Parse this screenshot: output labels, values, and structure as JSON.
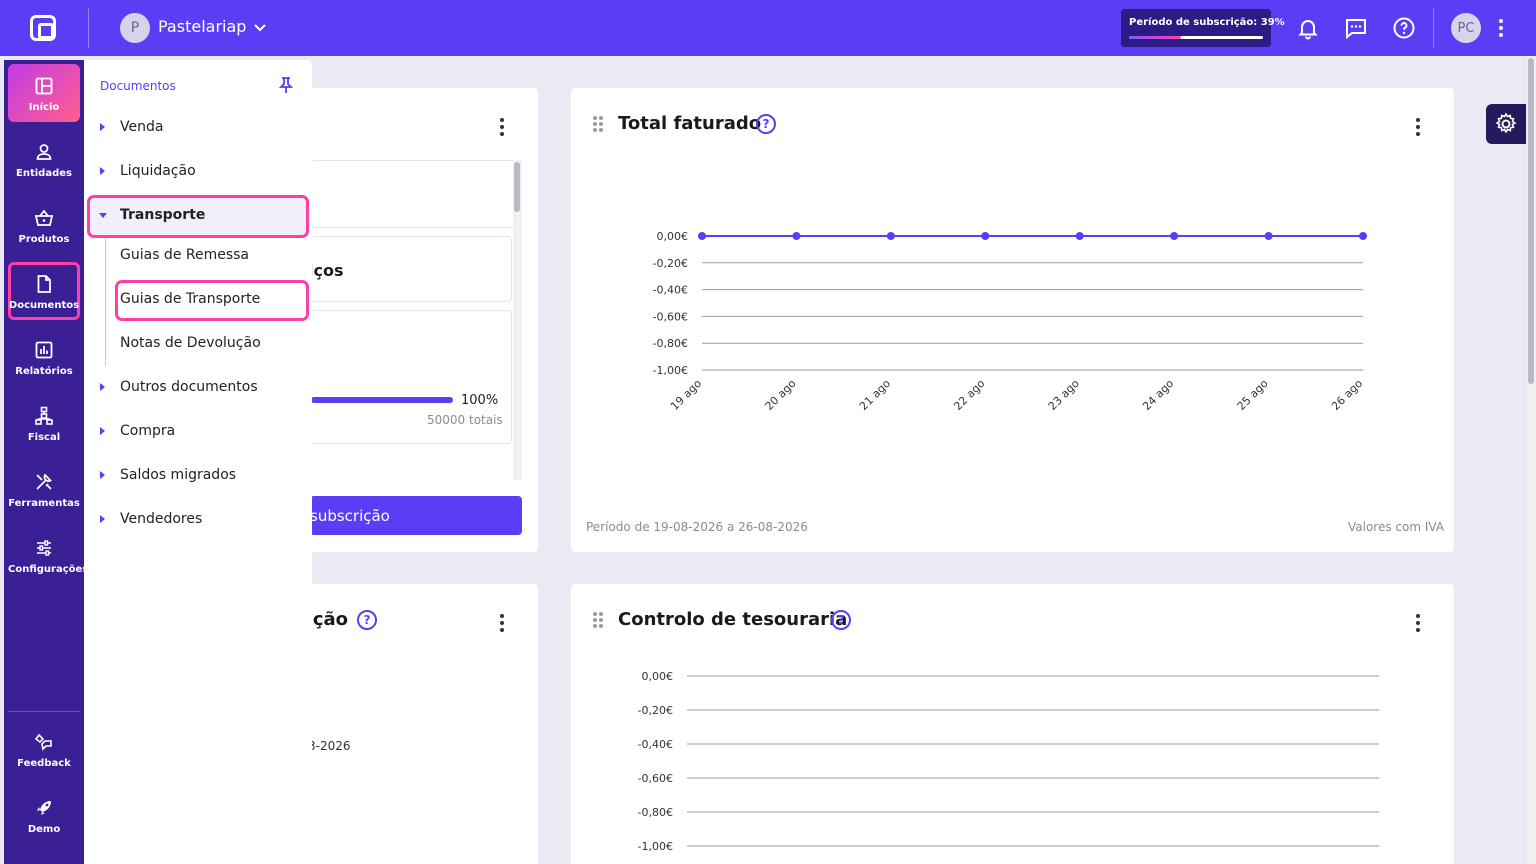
{
  "topbar": {
    "company_initial": "P",
    "company_name": "Pastelariap",
    "subscription_label": "Período de subscrição: 39%",
    "subscription_progress_pct": 39,
    "user_initials": "PC"
  },
  "sidenav": {
    "items": [
      {
        "label": "Início",
        "icon": "dashboard-icon"
      },
      {
        "label": "Entidades",
        "icon": "person-icon"
      },
      {
        "label": "Produtos",
        "icon": "basket-icon"
      },
      {
        "label": "Documentos",
        "icon": "document-icon"
      },
      {
        "label": "Relatórios",
        "icon": "bar-chart-icon"
      },
      {
        "label": "Fiscal",
        "icon": "hierarchy-icon"
      },
      {
        "label": "Ferramentas",
        "icon": "tools-icon"
      },
      {
        "label": "Configurações",
        "icon": "sliders-icon"
      }
    ],
    "bottom_items": [
      {
        "label": "Feedback",
        "icon": "feedback-icon"
      },
      {
        "label": "Demo",
        "icon": "rocket-icon"
      }
    ]
  },
  "flyout": {
    "title": "Documentos",
    "items": [
      {
        "label": "Venda"
      },
      {
        "label": "Liquidação"
      },
      {
        "label": "Transporte",
        "expanded": true
      },
      {
        "label": "Outros documentos"
      },
      {
        "label": "Compra"
      },
      {
        "label": "Saldos migrados"
      },
      {
        "label": "Vendedores"
      }
    ],
    "transporte_children": [
      "Guias de Remessa",
      "Guias de Transporte",
      "Notas de Devolução"
    ]
  },
  "card_subscription": {
    "partial_heading": "iços",
    "progress_label": "100%",
    "progress_pct": 100,
    "totals_label": "50000 totais",
    "button_label": "subscrição"
  },
  "card_total": {
    "title": "Total faturado",
    "period": "Período de 19-08-2026 a 26-08-2026",
    "vat_note": "Valores com IVA"
  },
  "card_bottom_left": {
    "partial_title": "ução",
    "partial_date": "3-2026"
  },
  "card_treasury": {
    "title": "Controlo de tesouraria"
  },
  "chart_data": [
    {
      "type": "line",
      "title": "Total faturado",
      "categories": [
        "19 ago",
        "20 ago",
        "21 ago",
        "22 ago",
        "23 ago",
        "24 ago",
        "25 ago",
        "26 ago"
      ],
      "values": [
        0,
        0,
        0,
        0,
        0,
        0,
        0,
        0
      ],
      "yticks": [
        "0,00€",
        "-0,20€",
        "-0,40€",
        "-0,60€",
        "-0,80€",
        "-1,00€"
      ],
      "ylim": [
        -1,
        0
      ],
      "color": "#5a3df5"
    },
    {
      "type": "line",
      "title": "Controlo de tesouraria",
      "categories": [],
      "values": [],
      "yticks": [
        "0,00€",
        "-0,20€",
        "-0,40€",
        "-0,60€",
        "-0,80€",
        "-1,00€"
      ],
      "ylim": [
        -1,
        0
      ]
    }
  ]
}
